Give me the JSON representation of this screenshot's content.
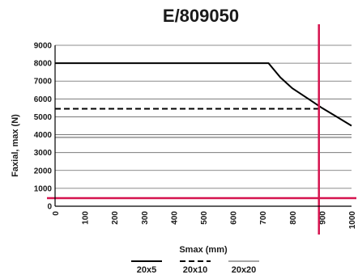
{
  "chart_data": {
    "type": "line",
    "title": "E/809050",
    "xlabel": "Smax (mm)",
    "ylabel": "Faxial, max (N)",
    "xlim": [
      0,
      1000
    ],
    "ylim": [
      0,
      9000
    ],
    "x_ticks": [
      0,
      100,
      200,
      300,
      400,
      500,
      600,
      700,
      800,
      900,
      1000
    ],
    "y_ticks": [
      0,
      1000,
      2000,
      3000,
      4000,
      5000,
      6000,
      7000,
      8000,
      9000
    ],
    "grid": "horizontal",
    "legend_position": "bottom",
    "series": [
      {
        "name": "20x5",
        "style": "solid",
        "color": "#000000",
        "points": [
          [
            0,
            8000
          ],
          [
            720,
            8000
          ],
          [
            760,
            7200
          ],
          [
            800,
            6600
          ],
          [
            850,
            6050
          ],
          [
            900,
            5500
          ],
          [
            950,
            5000
          ],
          [
            1000,
            4500
          ]
        ]
      },
      {
        "name": "20x10",
        "style": "dashed",
        "color": "#000000",
        "points": [
          [
            0,
            5450
          ],
          [
            890,
            5450
          ]
        ]
      },
      {
        "name": "20x20",
        "style": "solid",
        "color": "#a6a6a6",
        "points": [
          [
            0,
            3850
          ],
          [
            1000,
            3850
          ]
        ]
      }
    ],
    "reference_lines": {
      "color": "#d6144f",
      "vertical_x": 890,
      "horizontal_y": 450
    }
  }
}
